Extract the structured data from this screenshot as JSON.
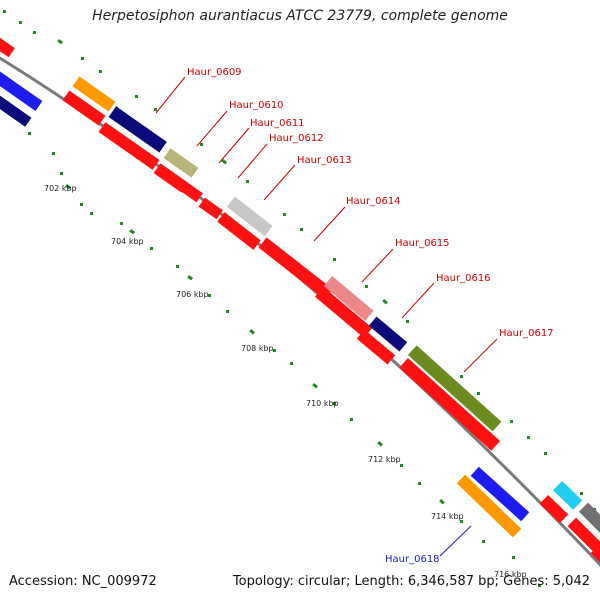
{
  "title": "Herpetosiphon aurantiacus ATCC 23779, complete genome",
  "accession": "Accession: NC_009972",
  "summary": "Topology: circular; Length: 6,346,587 bp; Genes: 5,042",
  "colors": {
    "backbone": "#8c8c8c",
    "label_red": "#cc0000",
    "label_blue": "#1a1ad0",
    "tick_dots": "#1e8c1e"
  },
  "scale_labels": [
    "702 kbp",
    "704 kbp",
    "706 kbp",
    "708 kbp",
    "710 kbp",
    "712 kbp",
    "714 kbp",
    "716 kbp"
  ],
  "gene_labels": [
    {
      "text": "Haur_0609",
      "color": "#cc0000"
    },
    {
      "text": "Haur_0610",
      "color": "#cc0000"
    },
    {
      "text": "Haur_0611",
      "color": "#cc0000"
    },
    {
      "text": "Haur_0612",
      "color": "#cc0000"
    },
    {
      "text": "Haur_0613",
      "color": "#cc0000"
    },
    {
      "text": "Haur_0614",
      "color": "#cc0000"
    },
    {
      "text": "Haur_0615",
      "color": "#cc0000"
    },
    {
      "text": "Haur_0616",
      "color": "#cc0000"
    },
    {
      "text": "Haur_0617",
      "color": "#cc0000"
    },
    {
      "text": "Haur_0618",
      "color": "#1a1ad0"
    }
  ]
}
